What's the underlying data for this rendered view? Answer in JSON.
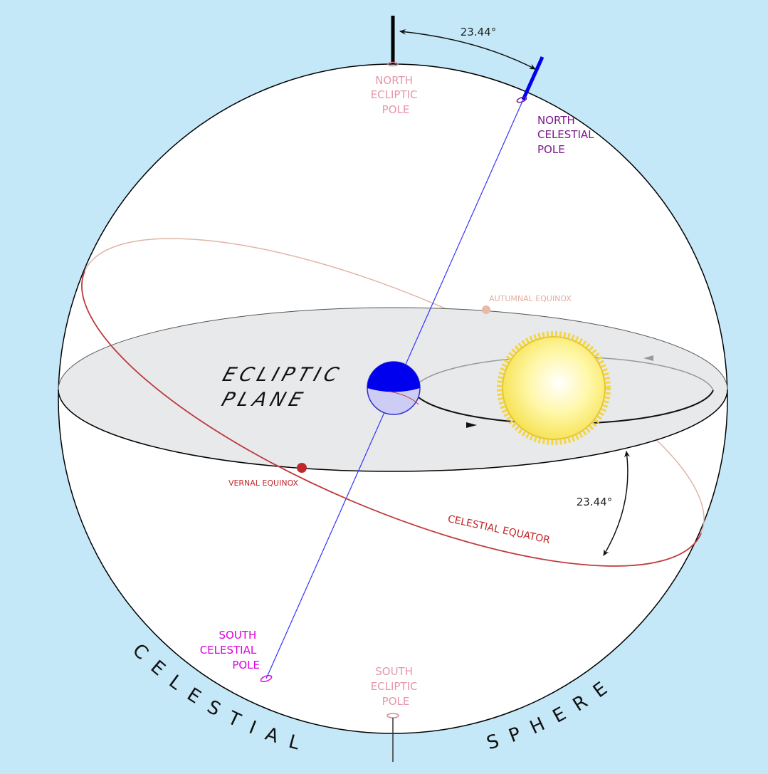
{
  "angles": {
    "axial_tilt": "23.44°",
    "equator_tilt": "23.44°"
  },
  "north_ecliptic_pole": [
    "NORTH",
    "ECLIPTIC",
    "POLE"
  ],
  "north_celestial_pole": [
    "NORTH",
    "CELESTIAL",
    "POLE"
  ],
  "south_celestial_pole": [
    "SOUTH",
    "CELESTIAL",
    "POLE"
  ],
  "south_ecliptic_pole": [
    "SOUTH",
    "ECLIPTIC",
    "POLE"
  ],
  "ecliptic_plane": [
    "ECLIPTIC",
    "PLANE"
  ],
  "autumnal_equinox": "AUTUMNAL EQUINOX",
  "vernal_equinox": "VERNAL EQUINOX",
  "celestial_equator": "CELESTIAL EQUATOR",
  "sphere_label": [
    "CELESTIAL",
    "SPHERE"
  ]
}
